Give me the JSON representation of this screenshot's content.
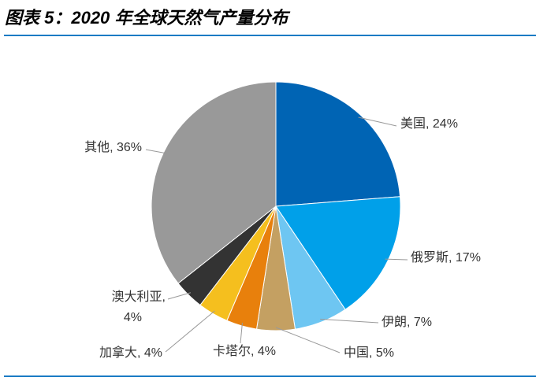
{
  "chart_data": {
    "type": "pie",
    "title": "图表 5：2020 年全球天然气产量分布",
    "categories": [
      "美国",
      "俄罗斯",
      "伊朗",
      "中国",
      "卡塔尔",
      "加拿大",
      "澳大利亚",
      "其他"
    ],
    "values": [
      24,
      17,
      7,
      5,
      4,
      4,
      4,
      36
    ],
    "value_labels": [
      "美国, 24%",
      "俄罗斯, 17%",
      "伊朗, 7%",
      "中国, 5%",
      "卡塔尔, 4%",
      "加拿大, 4%",
      "澳大利亚,\n4%",
      "其他, 36%"
    ],
    "colors": [
      "#0064b4",
      "#00a0e9",
      "#6ec6f2",
      "#c4a062",
      "#e8800c",
      "#f5bf1e",
      "#333333",
      "#999999"
    ]
  }
}
